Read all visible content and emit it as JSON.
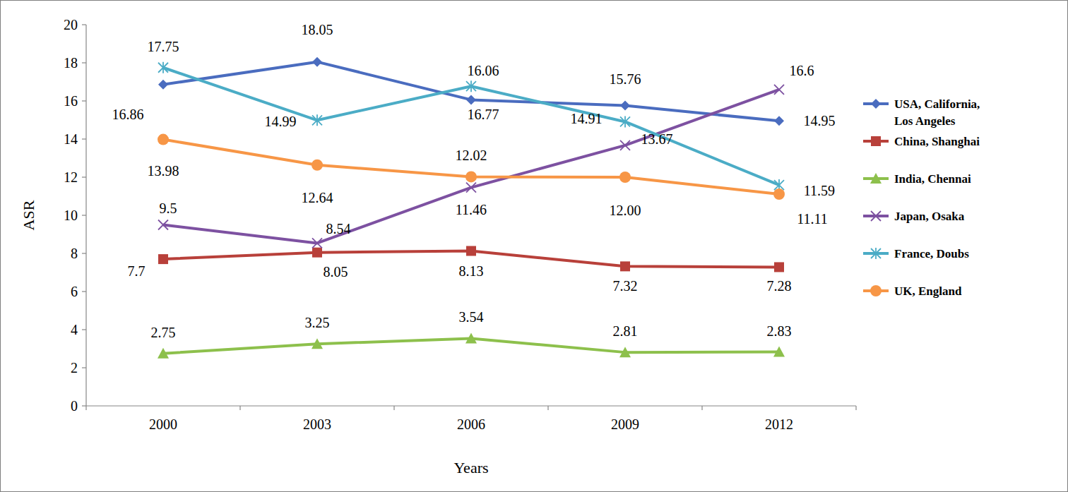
{
  "chart_data": {
    "type": "line",
    "x_label": "Years",
    "y_label": "ASR",
    "categories": [
      "2000",
      "2003",
      "2006",
      "2009",
      "2012"
    ],
    "ylim": [
      0,
      20
    ],
    "yticks": [
      0,
      2,
      4,
      6,
      8,
      10,
      12,
      14,
      16,
      18,
      20
    ],
    "grid": false,
    "legend": "right",
    "data_labels": true,
    "series": [
      {
        "name": "USA, California, Los Angeles",
        "color": "#4a6cbf",
        "marker": "diamond",
        "values": [
          16.86,
          18.05,
          16.06,
          15.76,
          14.95
        ]
      },
      {
        "name": "China, Shanghai",
        "color": "#b8403a",
        "marker": "square",
        "values": [
          7.7,
          8.05,
          8.13,
          7.32,
          7.28
        ]
      },
      {
        "name": "India, Chennai",
        "color": "#8dc04c",
        "marker": "triangle",
        "values": [
          2.75,
          3.25,
          3.54,
          2.81,
          2.83
        ]
      },
      {
        "name": "Japan, Osaka",
        "color": "#7d51a1",
        "marker": "x",
        "values": [
          9.5,
          8.54,
          11.46,
          13.67,
          16.6
        ]
      },
      {
        "name": "France, Doubs",
        "color": "#4bacc6",
        "marker": "star",
        "values": [
          17.75,
          14.99,
          16.77,
          14.91,
          11.59
        ]
      },
      {
        "name": "UK, England",
        "color": "#f79646",
        "marker": "circle",
        "values": [
          13.98,
          12.64,
          12.02,
          12,
          11.11
        ],
        "value_labels": [
          "13.98",
          "12.64",
          "12.02",
          "12.00",
          "11.11"
        ]
      }
    ]
  }
}
